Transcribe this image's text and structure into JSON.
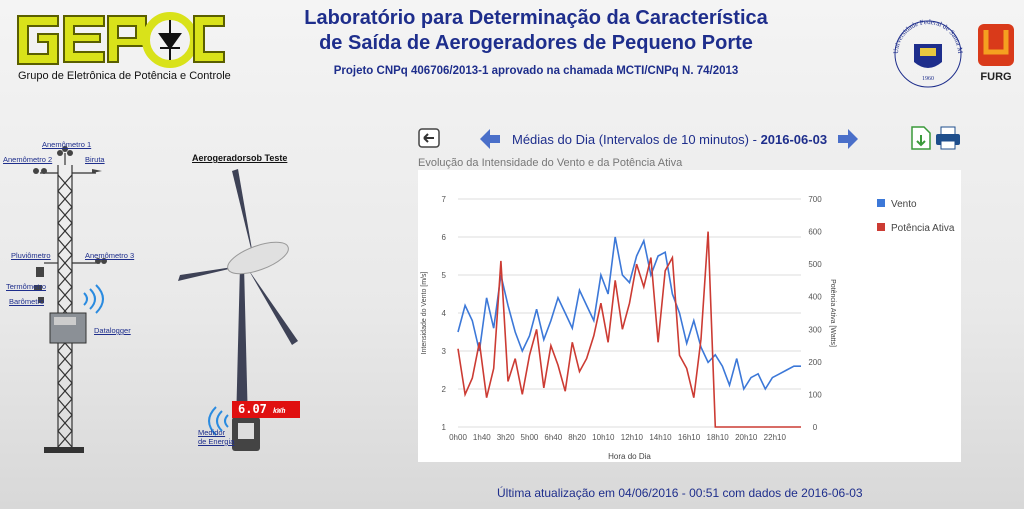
{
  "header": {
    "logo_text": "GEPOC",
    "logo_subtitle": "Grupo de Eletrônica de Potência e Controle",
    "title_line1": "Laboratório para Determinação da Característica",
    "title_line2": "de Saída de Aerogeradores de Pequeno Porte",
    "project": "Projeto CNPq 406706/2013-1 aprovado na chamada MCTI/CNPq N. 74/2013",
    "ufsc_seal_text": "Universidade Federal de Santa Maria",
    "ufsc_year": "1960",
    "furg_label": "FURG"
  },
  "tower": {
    "anemometro1": "Anemômetro 1",
    "anemometro2": "Anemômetro 2",
    "biruta": "Biruta",
    "pluviometro": "Pluviômetro",
    "anemometro3": "Anemômetro 3",
    "termometro": "Termômetro",
    "barometro": "Barômetro",
    "datalogger": "Datalogger"
  },
  "turbine": {
    "title": "Aerogeradorsob Teste",
    "energy_value": "6.07",
    "energy_unit": "kWh",
    "meter_line1": "Medidor",
    "meter_line2": "de Energia"
  },
  "nav": {
    "title_prefix": "Médias do Dia (Intervalos de 10 minutos) - ",
    "date": "2016-06-03",
    "icons": [
      "back-icon",
      "prev-arrow-icon",
      "next-arrow-icon",
      "export-icon",
      "print-icon"
    ]
  },
  "chart_caption": "Evolução da Intensidade do Vento e da Potência Ativa",
  "footer": "Última atualização em 04/06/2016 - 00:51 com dados de 2016-06-03",
  "colors": {
    "wind": "#3c78d8",
    "power": "#cc3b33",
    "title": "#1e2e8c"
  },
  "chart_data": {
    "type": "line",
    "xlabel": "Hora do Dia",
    "ylabel": "Intensidade do Vento [m/s]",
    "y2label": "Potência Ativa [Watts]",
    "ylim": [
      1,
      7
    ],
    "y2lim": [
      0,
      700
    ],
    "yticks": [
      "1",
      "2",
      "3",
      "4",
      "5",
      "6",
      "7"
    ],
    "y2ticks": [
      "0",
      "100",
      "200",
      "300",
      "400",
      "500",
      "600",
      "700"
    ],
    "xticks": [
      "0h00",
      "1h40",
      "3h20",
      "5h00",
      "6h40",
      "8h20",
      "10h10",
      "12h10",
      "14h10",
      "16h10",
      "18h10",
      "20h10",
      "22h10"
    ],
    "legend_position": "right",
    "x_hours": [
      0,
      0.5,
      1,
      1.5,
      2,
      2.5,
      3,
      3.5,
      4,
      4.5,
      5,
      5.5,
      6,
      6.5,
      7,
      7.5,
      8,
      8.5,
      9,
      9.5,
      10,
      10.5,
      11,
      11.5,
      12,
      12.5,
      13,
      13.5,
      14,
      14.5,
      15,
      15.5,
      16,
      16.5,
      17,
      17.5,
      18,
      18.5,
      19,
      19.5,
      20,
      20.5,
      21,
      21.5,
      22,
      22.5,
      23,
      23.5
    ],
    "series": [
      {
        "name": "Vento",
        "axis": "left",
        "values": [
          3.5,
          4.2,
          3.8,
          3.0,
          4.4,
          3.6,
          5.0,
          4.2,
          3.5,
          3.0,
          3.4,
          4.1,
          3.3,
          3.8,
          4.4,
          4.0,
          3.6,
          4.6,
          4.2,
          3.8,
          5.0,
          4.5,
          6.0,
          5.0,
          4.8,
          5.5,
          5.9,
          5.0,
          5.5,
          5.6,
          4.5,
          4.0,
          3.2,
          3.8,
          3.1,
          2.7,
          2.9,
          2.6,
          2.1,
          2.8,
          2.0,
          2.3,
          2.4,
          2.0,
          2.3,
          2.4,
          2.5,
          2.6
        ]
      },
      {
        "name": "Potência Ativa",
        "axis": "right",
        "values": [
          240,
          100,
          150,
          260,
          90,
          180,
          510,
          140,
          210,
          100,
          220,
          300,
          120,
          250,
          190,
          110,
          260,
          170,
          210,
          280,
          380,
          260,
          450,
          300,
          380,
          500,
          430,
          520,
          260,
          480,
          520,
          220,
          180,
          90,
          270,
          600,
          0,
          0,
          0,
          0,
          0,
          0,
          0,
          0,
          0,
          0,
          0,
          0
        ]
      }
    ]
  }
}
